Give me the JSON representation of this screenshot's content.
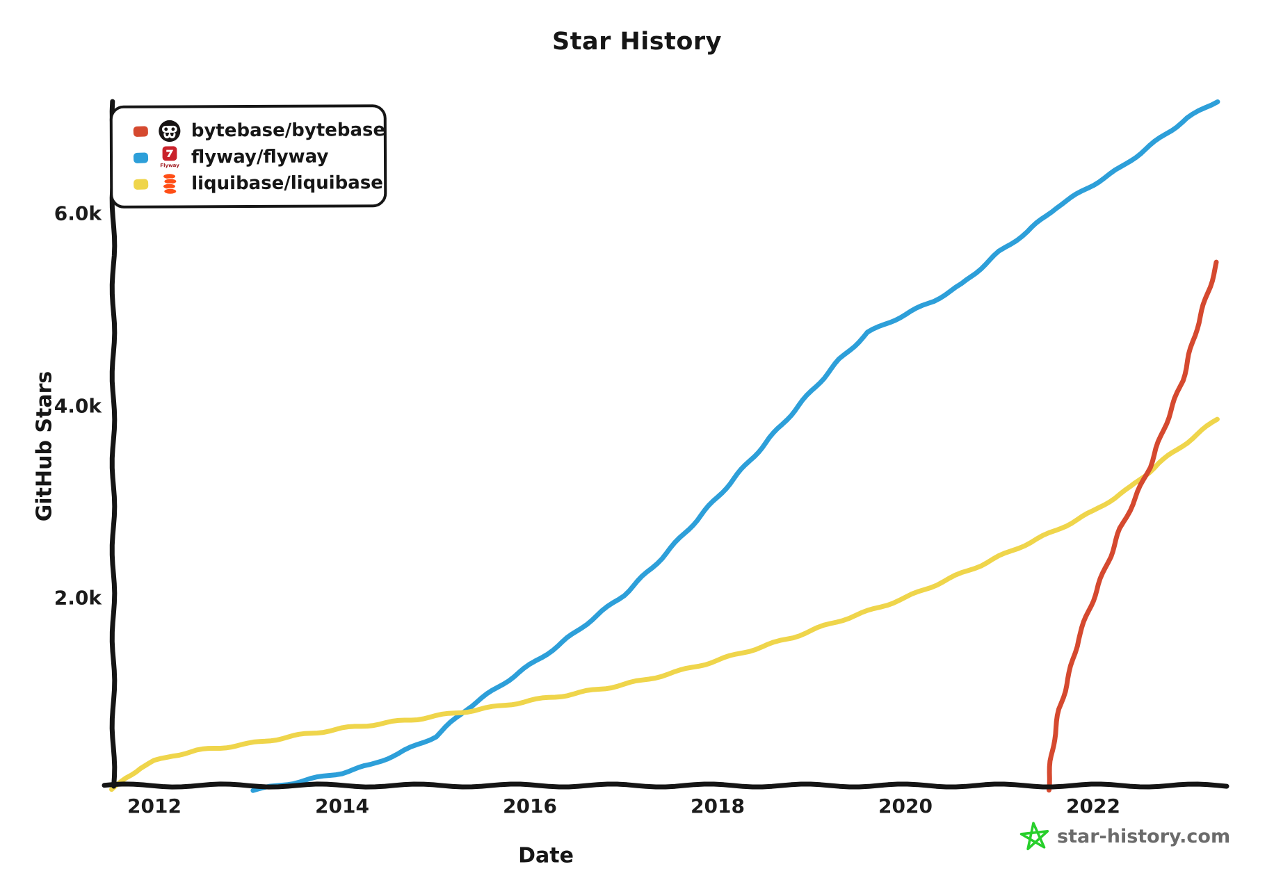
{
  "title": "Star History",
  "axis_color": "#151515",
  "legend": [
    {
      "label": "bytebase/bytebase",
      "color": "#D5492F",
      "icon": "bytebase-avatar-icon",
      "logo_color": "#181414"
    },
    {
      "label": "flyway/flyway",
      "color": "#2D9FD9",
      "icon": "flyway-logo-icon",
      "logo_color": "#C9222B",
      "logo_text": "Flyway"
    },
    {
      "label": "liquibase/liquibase",
      "color": "#EFD54B",
      "icon": "liquibase-logo-icon",
      "logo_color": "#FF4E16"
    }
  ],
  "footer": {
    "site": "star-history.com",
    "star_color": "#27CF2B",
    "text_color": "#6B6B6B"
  },
  "chart_data": {
    "type": "line",
    "title": "Star History",
    "xlabel": "Date",
    "ylabel": "GitHub Stars",
    "style": "xkcd-hand-drawn",
    "grid": false,
    "legend_position": "top-left",
    "x_range": [
      2011.45,
      2023.45
    ],
    "y_range": [
      0,
      7300
    ],
    "x_ticks": [
      {
        "v": 2012,
        "label": "2012"
      },
      {
        "v": 2014,
        "label": "2014"
      },
      {
        "v": 2016,
        "label": "2016"
      },
      {
        "v": 2018,
        "label": "2018"
      },
      {
        "v": 2020,
        "label": "2020"
      },
      {
        "v": 2022,
        "label": "2022"
      }
    ],
    "y_ticks": [
      {
        "v": 2000,
        "label": "2.0k"
      },
      {
        "v": 4000,
        "label": "4.0k"
      },
      {
        "v": 6000,
        "label": "6.0k"
      }
    ],
    "series": [
      {
        "name": "bytebase/bytebase",
        "color": "#D5492F",
        "points": [
          [
            2021.52,
            0
          ],
          [
            2021.55,
            300
          ],
          [
            2021.58,
            520
          ],
          [
            2021.64,
            840
          ],
          [
            2021.75,
            1220
          ],
          [
            2021.84,
            1570
          ],
          [
            2021.95,
            1860
          ],
          [
            2022.06,
            2140
          ],
          [
            2022.18,
            2430
          ],
          [
            2022.29,
            2720
          ],
          [
            2022.45,
            3040
          ],
          [
            2022.6,
            3360
          ],
          [
            2022.8,
            3880
          ],
          [
            2022.95,
            4260
          ],
          [
            2023.1,
            4800
          ],
          [
            2023.2,
            5110
          ],
          [
            2023.32,
            5490
          ]
        ]
      },
      {
        "name": "flyway/flyway",
        "color": "#2D9FD9",
        "points": [
          [
            2013.05,
            0
          ],
          [
            2013.3,
            40
          ],
          [
            2013.6,
            100
          ],
          [
            2014,
            180
          ],
          [
            2014.3,
            260
          ],
          [
            2014.6,
            380
          ],
          [
            2015,
            560
          ],
          [
            2015.32,
            840
          ],
          [
            2015.6,
            1030
          ],
          [
            2016,
            1300
          ],
          [
            2016.3,
            1500
          ],
          [
            2016.6,
            1730
          ],
          [
            2017,
            2030
          ],
          [
            2017.3,
            2310
          ],
          [
            2017.6,
            2620
          ],
          [
            2018,
            3050
          ],
          [
            2018.3,
            3380
          ],
          [
            2018.6,
            3710
          ],
          [
            2019,
            4150
          ],
          [
            2019.3,
            4480
          ],
          [
            2019.6,
            4760
          ],
          [
            2020,
            4950
          ],
          [
            2020.3,
            5090
          ],
          [
            2020.6,
            5260
          ],
          [
            2021,
            5600
          ],
          [
            2021.3,
            5810
          ],
          [
            2021.6,
            6060
          ],
          [
            2022,
            6300
          ],
          [
            2022.3,
            6480
          ],
          [
            2022.6,
            6700
          ],
          [
            2023,
            6990
          ],
          [
            2023.32,
            7170
          ]
        ]
      },
      {
        "name": "liquibase/liquibase",
        "color": "#EFD54B",
        "points": [
          [
            2011.55,
            0
          ],
          [
            2011.7,
            130
          ],
          [
            2011.85,
            230
          ],
          [
            2012,
            300
          ],
          [
            2012.2,
            360
          ],
          [
            2012.45,
            410
          ],
          [
            2012.7,
            440
          ],
          [
            2013,
            480
          ],
          [
            2013.3,
            530
          ],
          [
            2013.6,
            580
          ],
          [
            2014,
            640
          ],
          [
            2014.4,
            690
          ],
          [
            2014.8,
            740
          ],
          [
            2015.2,
            800
          ],
          [
            2015.6,
            860
          ],
          [
            2016,
            930
          ],
          [
            2016.4,
            990
          ],
          [
            2016.8,
            1060
          ],
          [
            2017.2,
            1140
          ],
          [
            2017.6,
            1240
          ],
          [
            2018,
            1350
          ],
          [
            2018.4,
            1470
          ],
          [
            2018.8,
            1590
          ],
          [
            2019.2,
            1730
          ],
          [
            2019.6,
            1860
          ],
          [
            2020,
            2000
          ],
          [
            2020.4,
            2170
          ],
          [
            2020.8,
            2340
          ],
          [
            2021.2,
            2520
          ],
          [
            2021.6,
            2700
          ],
          [
            2022,
            2900
          ],
          [
            2022.4,
            3150
          ],
          [
            2022.7,
            3400
          ],
          [
            2023,
            3620
          ],
          [
            2023.32,
            3860
          ]
        ]
      }
    ]
  }
}
